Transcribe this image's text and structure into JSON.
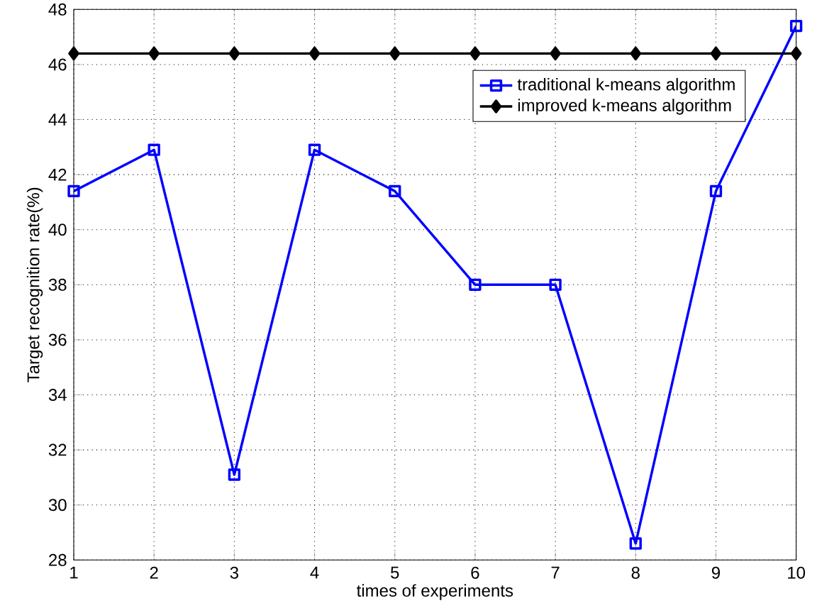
{
  "chart_data": {
    "type": "line",
    "xlabel": "times of experiments",
    "ylabel": "Target recognition rate(%)",
    "x": [
      1,
      2,
      3,
      4,
      5,
      6,
      7,
      8,
      9,
      10
    ],
    "series": [
      {
        "name": "traditional k-means algorithm",
        "color": "#0000ff",
        "marker": "square",
        "values": [
          41.4,
          42.9,
          31.1,
          42.9,
          41.4,
          38.0,
          38.0,
          28.6,
          41.4,
          47.4
        ]
      },
      {
        "name": "improved k-means algorithm",
        "color": "#000000",
        "marker": "diamond",
        "values": [
          46.4,
          46.4,
          46.4,
          46.4,
          46.4,
          46.4,
          46.4,
          46.4,
          46.4,
          46.4
        ]
      }
    ],
    "xlim": [
      1,
      10
    ],
    "xticks": [
      1,
      2,
      3,
      4,
      5,
      6,
      7,
      8,
      9,
      10
    ],
    "ylim": [
      28,
      48
    ],
    "yticks": [
      28,
      30,
      32,
      34,
      36,
      38,
      40,
      42,
      44,
      46,
      48
    ],
    "grid": true,
    "legend": "top right",
    "line_style": "solid"
  }
}
